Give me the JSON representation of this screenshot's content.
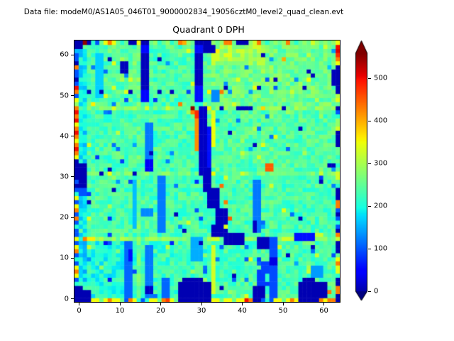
{
  "figure": {
    "data_file_label": "Data file: modeM0/AS1A05_046T01_9000002834_19056cztM0_level2_quad_clean.evt"
  },
  "chart_data": {
    "type": "heatmap",
    "title": "Quadrant 0 DPH",
    "xlabel": "",
    "ylabel": "",
    "grid_size": 64,
    "x_ticks": [
      0,
      10,
      20,
      30,
      40,
      50,
      60
    ],
    "y_ticks": [
      0,
      10,
      20,
      30,
      40,
      50,
      60
    ],
    "colormap": "jet",
    "vmin": -20,
    "vmax": 558,
    "colorbar": {
      "ticks": [
        0,
        100,
        200,
        300,
        400,
        500
      ],
      "extend": "both",
      "under_color": "#000080",
      "over_color": "#800000"
    },
    "background": {
      "base": 232,
      "noise": 36,
      "seed": 9,
      "speckle_low_p": 0.02,
      "speckle_low_d": -120,
      "speckle_high_p": 0.025,
      "speckle_high_d": 70
    },
    "tints": [
      [
        32,
        48,
        32,
        16,
        25
      ],
      [
        0,
        48,
        16,
        16,
        10
      ],
      [
        32,
        32,
        32,
        16,
        8
      ],
      [
        33,
        58,
        13,
        5,
        35
      ],
      [
        4,
        1,
        11,
        14,
        -25
      ],
      [
        1,
        5,
        2,
        57,
        -55
      ],
      [
        16,
        1,
        16,
        15,
        -10
      ]
    ],
    "seam_rows": [
      [
        15,
        45
      ],
      [
        31,
        28
      ],
      [
        47,
        32
      ]
    ],
    "seam_cols": [
      [
        15,
        20
      ],
      [
        47,
        15
      ]
    ],
    "features": [
      [
        25,
        1,
        8,
        4,
        5
      ],
      [
        26,
        5,
        5,
        1,
        5
      ],
      [
        54,
        1,
        7,
        4,
        5
      ],
      [
        55,
        5,
        3,
        1,
        5
      ],
      [
        61,
        2,
        1,
        1,
        430
      ],
      [
        43,
        1,
        3,
        3,
        8
      ],
      [
        44,
        4,
        2,
        4,
        85
      ],
      [
        45,
        7,
        2,
        3,
        90
      ],
      [
        47,
        1,
        2,
        15,
        95
      ],
      [
        47,
        9,
        2,
        2,
        30
      ],
      [
        12,
        1,
        2,
        14,
        110
      ],
      [
        13,
        10,
        1,
        3,
        60
      ],
      [
        17,
        1,
        2,
        13,
        120
      ],
      [
        17,
        2,
        2,
        2,
        15
      ],
      [
        21,
        1,
        2,
        5,
        110
      ],
      [
        57,
        6,
        3,
        3,
        140
      ],
      [
        33,
        2,
        1,
        12,
        330
      ],
      [
        28,
        10,
        3,
        6,
        150
      ],
      [
        36,
        14,
        5,
        3,
        8
      ],
      [
        44,
        13,
        3,
        3,
        10
      ],
      [
        53,
        15,
        5,
        2,
        60
      ],
      [
        33,
        15,
        2,
        1,
        330
      ],
      [
        50,
        15,
        2,
        1,
        330
      ],
      [
        2,
        15,
        1,
        1,
        430
      ],
      [
        3,
        15,
        2,
        1,
        360
      ],
      [
        20,
        17,
        2,
        14,
        120
      ],
      [
        14,
        18,
        1,
        12,
        160
      ],
      [
        16,
        21,
        3,
        2,
        130
      ],
      [
        43,
        17,
        2,
        13,
        120
      ],
      [
        43,
        17,
        1,
        3,
        15
      ],
      [
        33,
        16,
        4,
        3,
        10
      ],
      [
        34,
        19,
        3,
        4,
        10
      ],
      [
        32,
        23,
        3,
        5,
        10
      ],
      [
        31,
        27,
        2,
        5,
        12
      ],
      [
        30,
        31,
        3,
        2,
        12
      ],
      [
        35,
        28,
        1,
        1,
        440
      ],
      [
        36,
        24,
        1,
        1,
        430
      ],
      [
        37,
        20,
        1,
        1,
        450
      ],
      [
        33,
        31,
        1,
        1,
        350
      ],
      [
        36,
        18,
        1,
        1,
        340
      ],
      [
        0,
        28,
        3,
        6,
        5
      ],
      [
        1,
        26,
        2,
        2,
        100
      ],
      [
        17,
        32,
        2,
        12,
        120
      ],
      [
        17,
        32,
        2,
        3,
        40
      ],
      [
        30,
        32,
        2,
        16,
        15
      ],
      [
        32,
        33,
        1,
        10,
        60
      ],
      [
        29,
        37,
        1,
        8,
        420
      ],
      [
        29,
        45,
        1,
        2,
        480
      ],
      [
        28,
        47,
        1,
        1,
        550
      ],
      [
        28,
        46,
        1,
        1,
        430
      ],
      [
        33,
        38,
        1,
        7,
        350
      ],
      [
        33,
        45,
        1,
        2,
        330
      ],
      [
        32,
        47,
        1,
        1,
        360
      ],
      [
        46,
        32,
        2,
        2,
        450
      ],
      [
        39,
        47,
        4,
        1,
        12
      ],
      [
        35,
        47,
        1,
        1,
        15
      ],
      [
        16,
        49,
        2,
        14,
        55
      ],
      [
        16,
        52,
        2,
        9,
        10
      ],
      [
        11,
        56,
        2,
        3,
        10
      ],
      [
        29,
        49,
        2,
        14,
        60
      ],
      [
        29,
        53,
        2,
        8,
        12
      ],
      [
        33,
        49,
        2,
        3,
        130
      ],
      [
        5,
        50,
        2,
        11,
        170
      ],
      [
        33,
        61,
        2,
        1,
        360
      ],
      [
        36,
        60,
        2,
        1,
        340
      ],
      [
        33,
        59,
        2,
        2,
        330
      ],
      [
        43,
        62,
        2,
        1,
        330
      ],
      [
        31,
        61,
        3,
        2,
        8
      ],
      [
        62,
        53,
        1,
        4,
        10
      ],
      [
        1,
        1,
        3,
        2,
        5
      ],
      [
        1,
        3,
        1,
        1,
        5
      ],
      [
        1,
        62,
        1,
        1,
        5
      ]
    ],
    "low_dots_value": 10,
    "low_dots": [
      [
        3,
        51
      ],
      [
        6,
        51
      ],
      [
        13,
        51
      ],
      [
        20,
        51
      ],
      [
        23,
        51
      ],
      [
        8,
        59
      ],
      [
        20,
        59
      ],
      [
        36,
        52
      ],
      [
        44,
        52
      ],
      [
        45,
        60
      ],
      [
        56,
        56
      ],
      [
        57,
        55
      ],
      [
        55,
        52
      ],
      [
        54,
        42
      ],
      [
        50,
        47
      ],
      [
        43,
        38
      ],
      [
        37,
        41
      ],
      [
        26,
        17
      ],
      [
        24,
        21
      ],
      [
        51,
        11
      ],
      [
        57,
        13
      ],
      [
        38,
        6
      ],
      [
        35,
        3
      ],
      [
        30,
        14
      ],
      [
        59,
        29
      ],
      [
        6,
        31
      ],
      [
        14,
        31
      ],
      [
        8,
        32
      ],
      [
        3,
        24
      ],
      [
        9,
        27
      ],
      [
        61,
        33
      ],
      [
        62,
        33
      ],
      [
        54,
        20
      ],
      [
        18,
        36
      ],
      [
        48,
        54
      ]
    ],
    "warm_dots": [
      [
        35,
        51,
        430
      ],
      [
        50,
        22,
        340
      ],
      [
        9,
        47,
        340
      ],
      [
        4,
        48,
        360
      ],
      [
        25,
        48,
        430
      ],
      [
        8,
        31,
        350
      ],
      [
        49,
        13,
        330
      ],
      [
        17,
        47,
        330
      ],
      [
        40,
        31,
        330
      ],
      [
        50,
        59,
        400
      ]
    ],
    "left_column": [
      5,
      5,
      5,
      5,
      210,
      100,
      350,
      430,
      350,
      100,
      210,
      100,
      430,
      350,
      100,
      350,
      100,
      100,
      210,
      100,
      430,
      100,
      430,
      350,
      100,
      350,
      210,
      100,
      5,
      100,
      5,
      5,
      5,
      5,
      5,
      350,
      430,
      500,
      430,
      350,
      430,
      500,
      430,
      350,
      500,
      430,
      500,
      430,
      285,
      350,
      100,
      430,
      500,
      100,
      5,
      100,
      100,
      430,
      5,
      100,
      100,
      160,
      5,
      5
    ],
    "right_column": [
      5,
      5,
      430,
      430,
      5,
      5,
      210,
      340,
      340,
      430,
      350,
      255,
      5,
      5,
      5,
      320,
      430,
      5,
      100,
      210,
      100,
      5,
      100,
      430,
      430,
      5,
      5,
      5,
      210,
      255,
      330,
      330,
      255,
      210,
      255,
      210,
      255,
      255,
      5,
      5,
      5,
      5,
      330,
      285,
      285,
      210,
      100,
      5,
      255,
      340,
      310,
      5,
      5,
      5,
      5,
      5,
      5,
      5,
      350,
      430,
      480,
      510,
      500,
      350
    ],
    "bottom_row": [
      5,
      5,
      5,
      5,
      350,
      350,
      255,
      350,
      430,
      350,
      350,
      255,
      100,
      430,
      350,
      210,
      100,
      210,
      350,
      350,
      255,
      430,
      470,
      350,
      255,
      5,
      5,
      5,
      5,
      5,
      5,
      5,
      5,
      350,
      350,
      255,
      350,
      350,
      255,
      350,
      350,
      500,
      430,
      5,
      5,
      100,
      210,
      100,
      350,
      350,
      255,
      350,
      430,
      350,
      5,
      5,
      5,
      5,
      5,
      430,
      350,
      430,
      430,
      5
    ],
    "top_row": [
      5,
      5,
      550,
      5,
      210,
      100,
      255,
      350,
      430,
      350,
      255,
      210,
      255,
      5,
      5,
      350,
      5,
      5,
      255,
      285,
      210,
      255,
      285,
      210,
      255,
      430,
      400,
      285,
      255,
      5,
      5,
      5,
      5,
      285,
      255,
      285,
      430,
      430,
      255,
      5,
      5,
      5,
      285,
      330,
      430,
      255,
      210,
      255,
      285,
      255,
      285,
      430,
      255,
      210,
      255,
      285,
      255,
      330,
      285,
      255,
      285,
      255,
      285,
      350
    ]
  }
}
